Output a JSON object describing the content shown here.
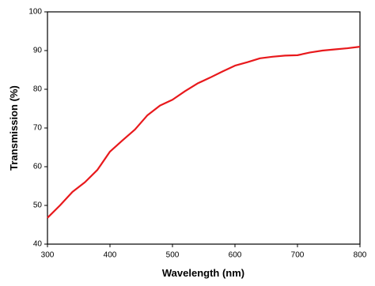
{
  "chart_data": {
    "type": "line",
    "x_label": "Wavelength (nm)",
    "y_label": "Transmission (%)",
    "x": [
      300,
      320,
      340,
      360,
      380,
      400,
      420,
      440,
      460,
      480,
      500,
      520,
      540,
      560,
      580,
      600,
      620,
      640,
      660,
      680,
      700,
      720,
      740,
      760,
      780,
      800
    ],
    "series": [
      {
        "name": "Transmission",
        "color": "#e8191c",
        "values": [
          46.8,
          50,
          53.5,
          56,
          59.2,
          63.9,
          66.8,
          69.6,
          73.3,
          75.8,
          77.3,
          79.5,
          81.5,
          83,
          84.6,
          86.1,
          87,
          88,
          88.4,
          88.7,
          88.8,
          89.5,
          90,
          90.3,
          90.6,
          91
        ]
      }
    ],
    "xlim": [
      300,
      800
    ],
    "xticks": [
      300,
      400,
      500,
      600,
      700,
      800
    ],
    "ylim": [
      40,
      100
    ],
    "yticks": [
      40,
      50,
      60,
      70,
      80,
      90,
      100
    ]
  }
}
